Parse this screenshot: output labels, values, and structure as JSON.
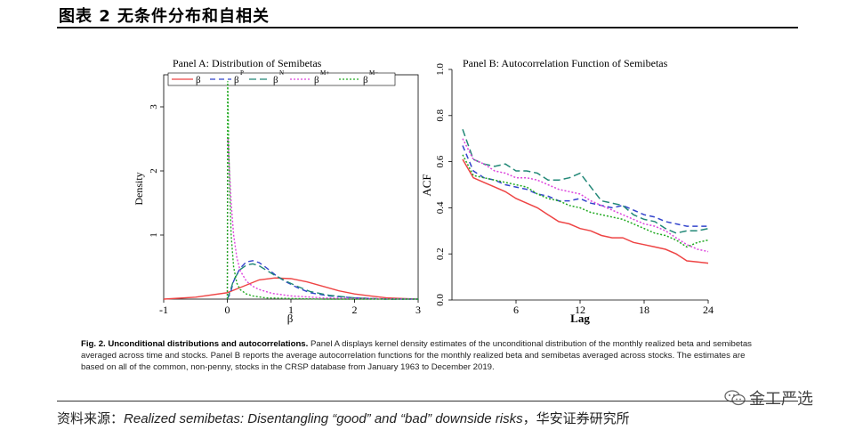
{
  "header": {
    "title": "图表 2  无条件分布和自相关"
  },
  "chart_data": [
    {
      "type": "line",
      "panel": "A",
      "title": "Panel A: Distribution of Semibetas",
      "xlabel": "β",
      "ylabel": "Density",
      "xlim": [
        -1,
        3
      ],
      "ylim": [
        0,
        3.5
      ],
      "xticks": [
        "-1",
        "0",
        "1",
        "2",
        "3"
      ],
      "yticks": [
        "1",
        "2",
        "3"
      ],
      "ytick_values": [
        1,
        2,
        3
      ],
      "xtick_values": [
        -1,
        0,
        1,
        2,
        3
      ],
      "legend_placement": "top",
      "legend": [
        {
          "label": "β",
          "superscript": "",
          "color": "#ee4444",
          "dash": "none"
        },
        {
          "label": "β",
          "superscript": "P",
          "color": "#3344cc",
          "dash": "6,4"
        },
        {
          "label": "β",
          "superscript": "N",
          "color": "#228877",
          "dash": "8,4"
        },
        {
          "label": "β",
          "superscript": "M+",
          "color": "#dd44dd",
          "dash": "2,2"
        },
        {
          "label": "β",
          "superscript": "M−",
          "color": "#22aa22",
          "dash": "2,2"
        }
      ],
      "series": [
        {
          "name": "β",
          "x": [
            -1,
            -0.5,
            0,
            0.25,
            0.5,
            0.75,
            1,
            1.25,
            1.5,
            1.75,
            2,
            2.25,
            2.5,
            2.75,
            3
          ],
          "y": [
            0.0,
            0.03,
            0.1,
            0.2,
            0.3,
            0.33,
            0.32,
            0.27,
            0.2,
            0.13,
            0.08,
            0.05,
            0.02,
            0.01,
            0.0
          ]
        },
        {
          "name": "βP",
          "x": [
            0,
            0.05,
            0.1,
            0.2,
            0.3,
            0.4,
            0.5,
            0.6,
            0.75,
            0.9,
            1.1,
            1.3,
            1.6,
            2,
            2.5,
            3
          ],
          "y": [
            0.0,
            0.1,
            0.28,
            0.48,
            0.58,
            0.6,
            0.57,
            0.5,
            0.38,
            0.28,
            0.18,
            0.1,
            0.05,
            0.02,
            0.0,
            0.0
          ]
        },
        {
          "name": "βN",
          "x": [
            0,
            0.05,
            0.1,
            0.2,
            0.3,
            0.4,
            0.5,
            0.6,
            0.75,
            0.9,
            1.1,
            1.3,
            1.6,
            2,
            2.5,
            3
          ],
          "y": [
            0.0,
            0.14,
            0.3,
            0.46,
            0.53,
            0.55,
            0.52,
            0.46,
            0.37,
            0.29,
            0.2,
            0.12,
            0.06,
            0.02,
            0.0,
            0.0
          ]
        },
        {
          "name": "βM+",
          "x": [
            0,
            0.01,
            0.03,
            0.06,
            0.1,
            0.15,
            0.2,
            0.3,
            0.4,
            0.5,
            0.7,
            1,
            1.5,
            2,
            3
          ],
          "y": [
            0.0,
            2.5,
            2.1,
            1.5,
            1.0,
            0.65,
            0.45,
            0.28,
            0.2,
            0.15,
            0.09,
            0.05,
            0.02,
            0.01,
            0.0
          ]
        },
        {
          "name": "βM−",
          "x": [
            0,
            0.005,
            0.01,
            0.02,
            0.04,
            0.06,
            0.1,
            0.15,
            0.2,
            0.3,
            0.4,
            0.6,
            1,
            1.5,
            3
          ],
          "y": [
            0.0,
            3.4,
            3.2,
            2.5,
            1.6,
            1.0,
            0.5,
            0.25,
            0.15,
            0.08,
            0.05,
            0.02,
            0.01,
            0.0,
            0.0
          ]
        }
      ]
    },
    {
      "type": "line",
      "panel": "B",
      "title": "Panel B: Autocorrelation Function of Semibetas",
      "xlabel": "Lag",
      "ylabel": "ACF",
      "xlim": [
        0,
        24
      ],
      "ylim": [
        0,
        1.0
      ],
      "xticks": [
        "6",
        "12",
        "18",
        "24"
      ],
      "xtick_values": [
        6,
        12,
        18,
        24
      ],
      "yticks": [
        "0.0",
        "0.2",
        "0.4",
        "0.6",
        "0.8",
        "1.0"
      ],
      "ytick_values": [
        0,
        0.2,
        0.4,
        0.6,
        0.8,
        1.0
      ],
      "x": [
        1,
        2,
        3,
        4,
        5,
        6,
        7,
        8,
        9,
        10,
        11,
        12,
        13,
        14,
        15,
        16,
        17,
        18,
        19,
        20,
        21,
        22,
        23,
        24
      ],
      "series": [
        {
          "name": "β",
          "values": [
            0.61,
            0.53,
            0.51,
            0.49,
            0.47,
            0.44,
            0.42,
            0.4,
            0.37,
            0.34,
            0.33,
            0.31,
            0.3,
            0.28,
            0.27,
            0.27,
            0.25,
            0.24,
            0.23,
            0.22,
            0.2,
            0.17,
            0.165,
            0.16
          ]
        },
        {
          "name": "βP",
          "values": [
            0.67,
            0.56,
            0.53,
            0.52,
            0.5,
            0.49,
            0.48,
            0.46,
            0.45,
            0.43,
            0.43,
            0.44,
            0.42,
            0.41,
            0.4,
            0.41,
            0.39,
            0.37,
            0.36,
            0.34,
            0.33,
            0.32,
            0.32,
            0.32
          ]
        },
        {
          "name": "βN",
          "values": [
            0.74,
            0.61,
            0.59,
            0.58,
            0.59,
            0.56,
            0.56,
            0.55,
            0.52,
            0.52,
            0.53,
            0.55,
            0.49,
            0.43,
            0.42,
            0.41,
            0.37,
            0.35,
            0.34,
            0.31,
            0.29,
            0.3,
            0.3,
            0.31
          ]
        },
        {
          "name": "βM+",
          "values": [
            0.7,
            0.61,
            0.59,
            0.56,
            0.55,
            0.53,
            0.53,
            0.52,
            0.5,
            0.48,
            0.47,
            0.46,
            0.43,
            0.41,
            0.39,
            0.37,
            0.35,
            0.33,
            0.32,
            0.3,
            0.27,
            0.24,
            0.22,
            0.21
          ]
        },
        {
          "name": "βM−",
          "values": [
            0.63,
            0.54,
            0.53,
            0.52,
            0.51,
            0.5,
            0.49,
            0.46,
            0.44,
            0.43,
            0.41,
            0.4,
            0.38,
            0.37,
            0.36,
            0.35,
            0.33,
            0.31,
            0.29,
            0.28,
            0.26,
            0.23,
            0.25,
            0.26
          ]
        }
      ]
    }
  ],
  "caption": {
    "lead": "Fig. 2. Unconditional distributions and autocorrelations.",
    "body": " Panel A displays kernel density estimates of the unconditional distribution of the monthly realized beta and semibetas averaged across time and stocks. Panel B reports the average autocorrelation functions for the monthly realized beta and semibetas averaged across stocks. The estimates are based on all of the common, non-penny, stocks in the CRSP database from January 1963 to December 2019."
  },
  "footer": {
    "source_prefix": "资料来源：",
    "source_title": "Realized semibetas: Disentangling “good” and “bad” downside risks",
    "source_suffix": "，华安证券研究所"
  },
  "watermark": {
    "text": "金工严选",
    "icon": "wechat-icon"
  }
}
